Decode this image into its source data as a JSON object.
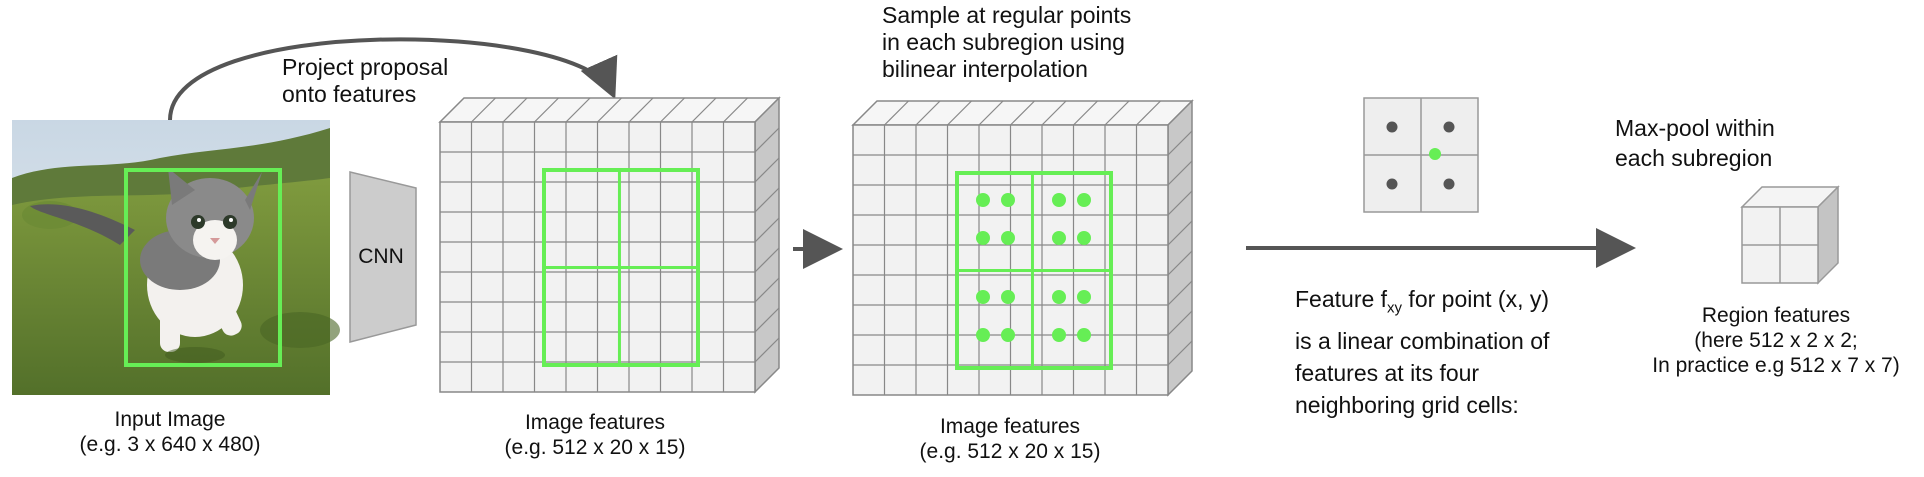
{
  "input_image": {
    "caption_line1": "Input Image",
    "caption_line2": "(e.g. 3 x 640 x 480)"
  },
  "cnn": {
    "label": "CNN"
  },
  "project": {
    "line1": "Project proposal",
    "line2": "onto features"
  },
  "features1": {
    "caption_line1": "Image features",
    "caption_line2": "(e.g. 512 x 20 x 15)"
  },
  "sample": {
    "line1": "Sample at regular points",
    "line2": "in each subregion using",
    "line3": "bilinear interpolation"
  },
  "features2": {
    "caption_line1": "Image features",
    "caption_line2": "(e.g. 512 x 20 x 15)"
  },
  "bilinear": {
    "line1_prefix": "Feature f",
    "line1_sub": "xy",
    "line1_suffix": " for point (x, y)",
    "line2": "is a linear combination of",
    "line3": "features at its four",
    "line4": "neighboring grid cells:"
  },
  "maxpool": {
    "line1": "Max-pool within",
    "line2": "each subregion"
  },
  "region": {
    "caption_line1": "Region features",
    "caption_line2": "(here 512 x 2 x 2;",
    "caption_line3": "In practice e.g 512 x 7 x 7)"
  },
  "colors": {
    "green": "#66ee55",
    "grid_face": "#f2f2f2",
    "grid_line": "#888888",
    "arrow": "#555555"
  }
}
